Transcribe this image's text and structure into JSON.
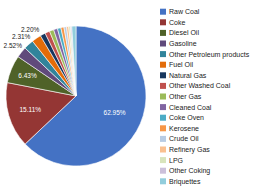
{
  "chart_data": {
    "type": "pie",
    "categories": [
      "Raw Coal",
      "Coke",
      "Diesel Oil",
      "Gasoline",
      "Other Petroleum products",
      "Fuel Oil",
      "Natural Gas",
      "Other Washed Coal",
      "Other Gas",
      "Cleaned Coal",
      "Coke Oven",
      "Kerosene",
      "Crude Oil",
      "Refinery Gas",
      "LPG",
      "Other Coking",
      "Briquettes"
    ],
    "values": [
      62.95,
      15.11,
      6.43,
      2.52,
      2.31,
      2.2,
      1.2,
      1.1,
      1.0,
      0.9,
      0.8,
      0.7,
      0.6,
      0.5,
      0.4,
      0.3,
      0.97
    ],
    "value_labels": [
      "62.95%",
      "15.11%",
      "6.43%",
      "2.52%",
      "2.31%",
      "2.20%",
      null,
      null,
      null,
      null,
      null,
      null,
      null,
      null,
      null,
      null,
      null
    ],
    "data_labels": true,
    "colors": [
      "#4472C4",
      "#943634",
      "#4F6228",
      "#604A7B",
      "#31849B",
      "#E36C09",
      "#17375E",
      "#C0504D",
      "#9BBB59",
      "#8064A2",
      "#4BACC6",
      "#F79646",
      "#B8CCE4",
      "#FAC090",
      "#D8E4BC",
      "#CCC0DA",
      "#92CDDC"
    ],
    "legend": "right"
  }
}
